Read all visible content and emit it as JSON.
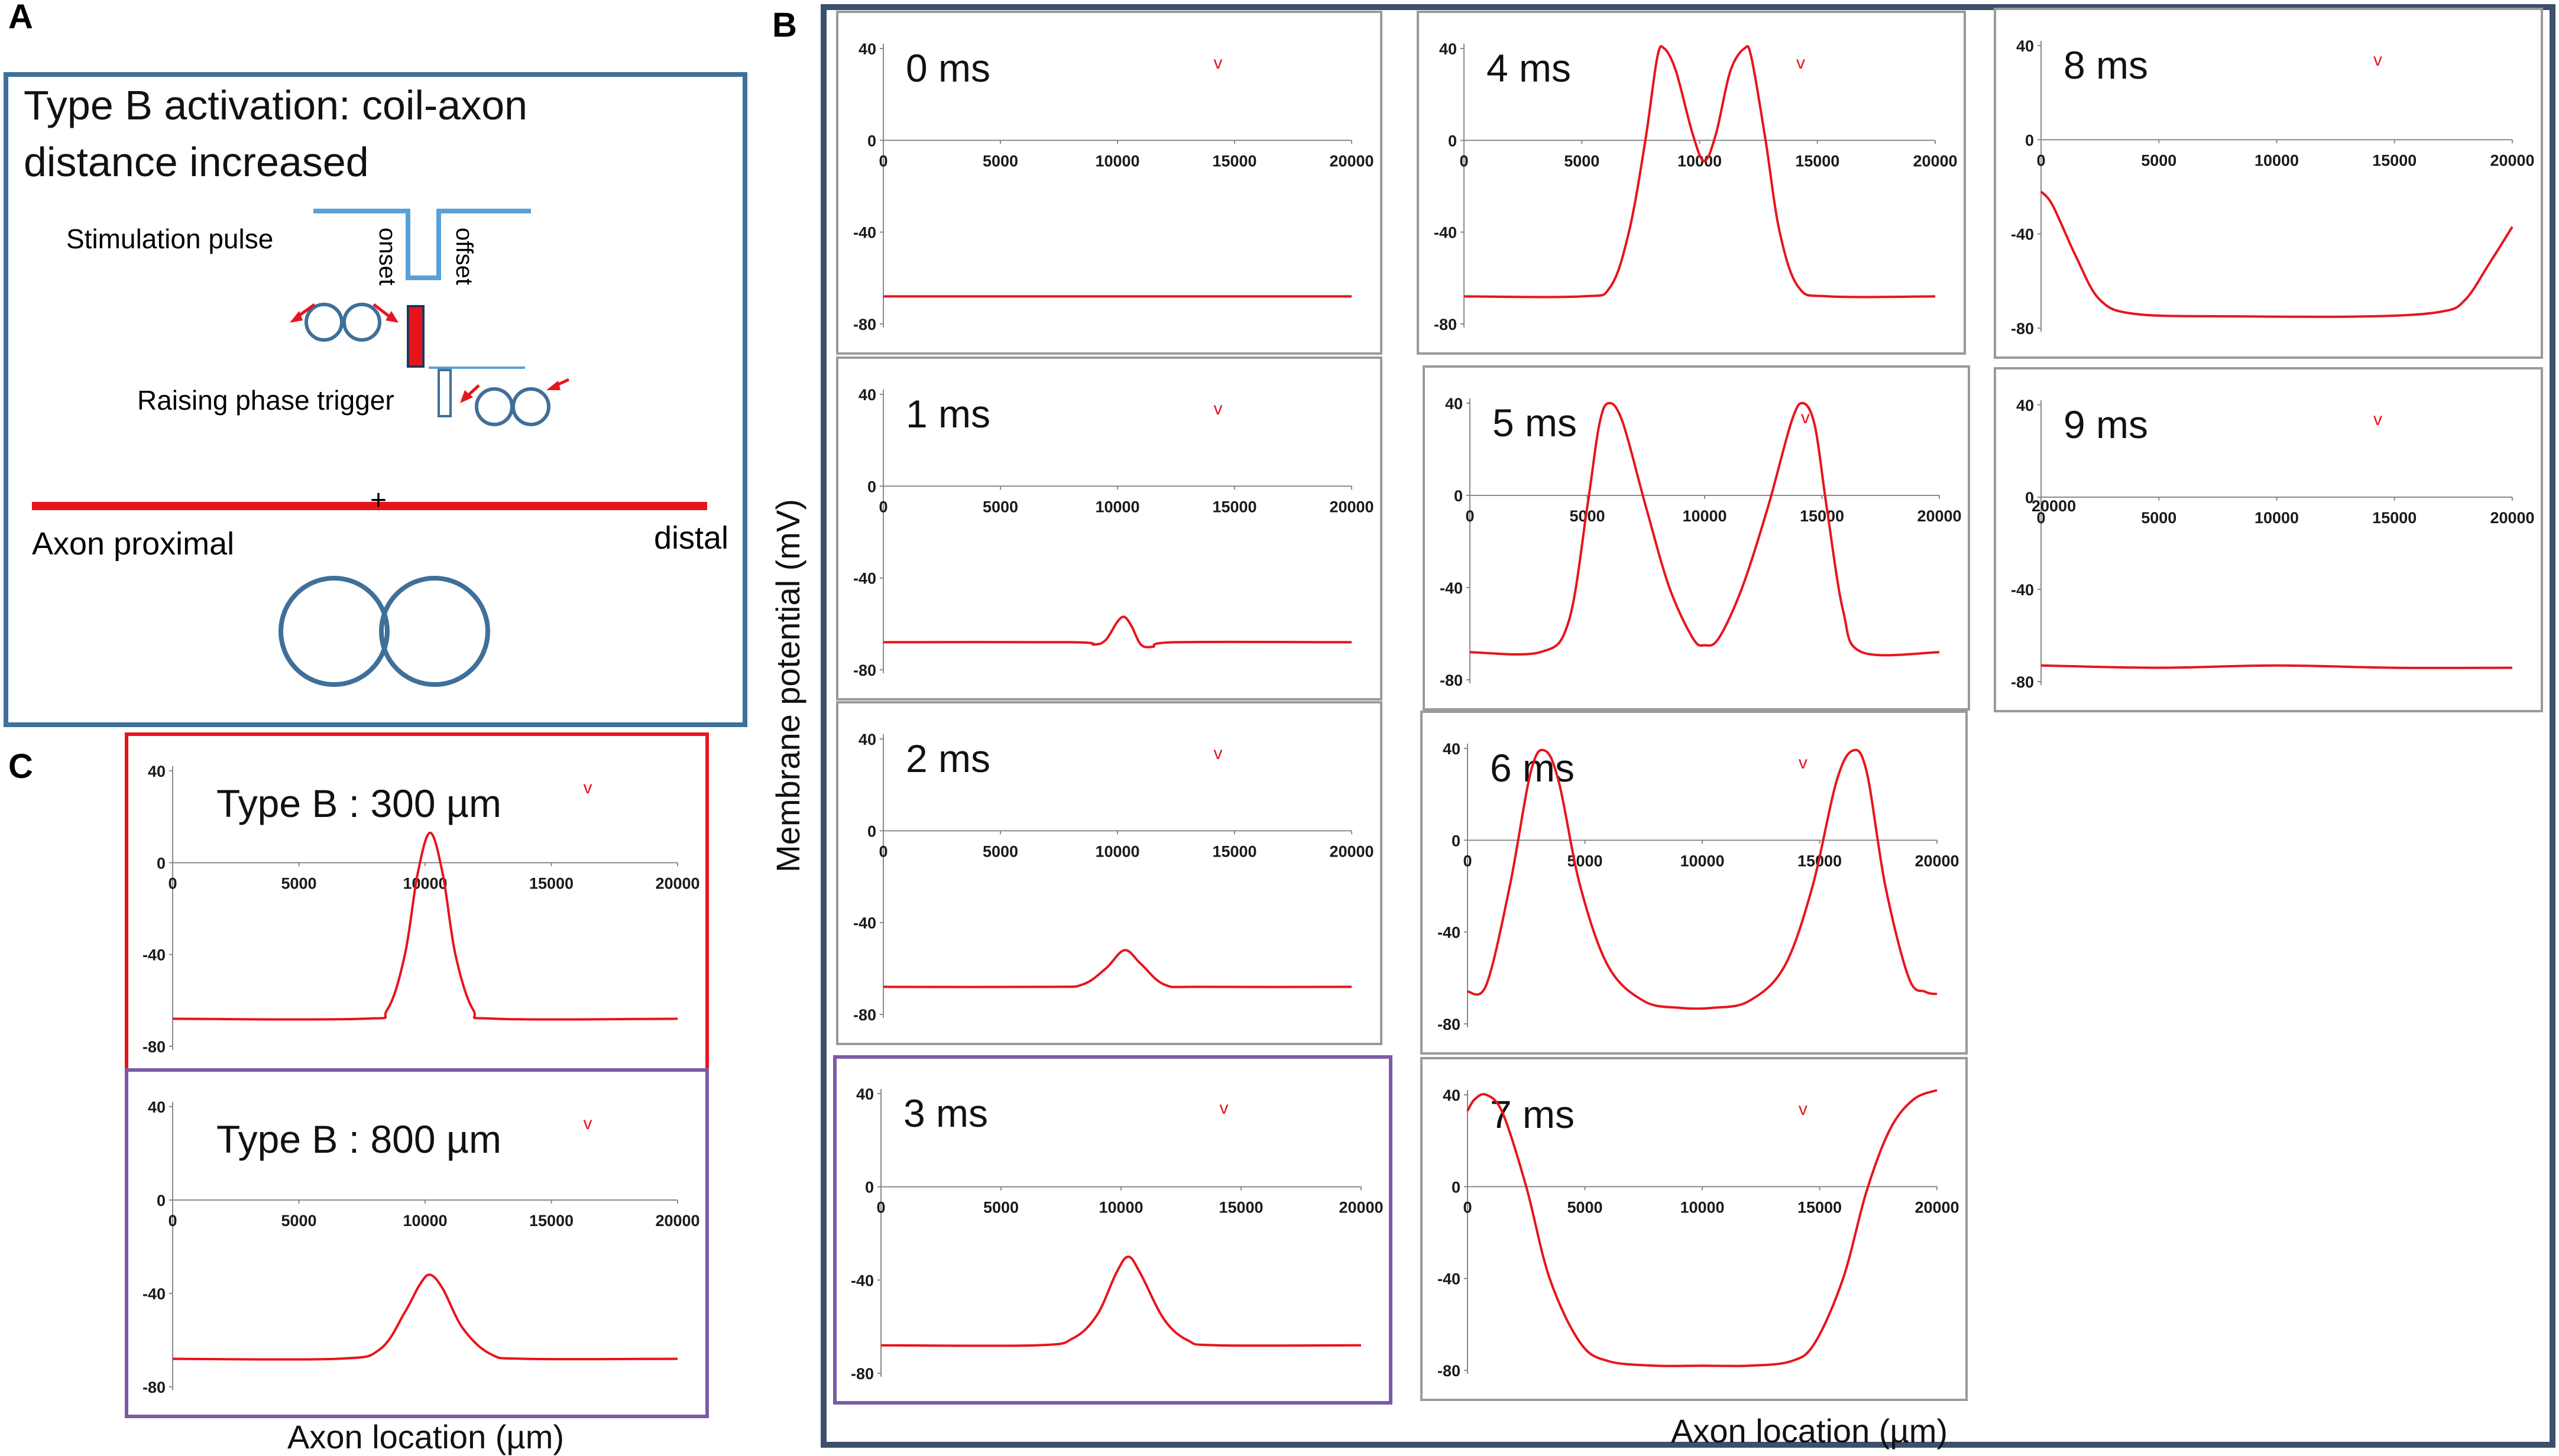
{
  "panels": {
    "a": {
      "letter": "A",
      "title_line1": "Type B activation: coil-axon",
      "title_line2": "distance increased",
      "stim_label": "Stimulation pulse",
      "onset_label": "onset",
      "offset_label": "offset",
      "trigger_label": "Raising phase trigger",
      "center_mark": "+",
      "axon_proximal": "Axon proximal",
      "axon_distal": "distal"
    },
    "b": {
      "letter": "B",
      "ylabel": "Membrane potential (mV)",
      "xlabel": "Axon location (µm)"
    },
    "c": {
      "letter": "C",
      "xlabel": "Axon location (µm)"
    }
  },
  "colors": {
    "trace": "#e8141c",
    "panel_a_border": "#3f6f9a",
    "panel_b_border": "#3c4f6b",
    "panel_c_top_border": "#e8141c",
    "panel_c_bottom_border": "#7c5aa6",
    "coil": "#3f6f9a",
    "pulse": "#5aa0d8",
    "axon": "#e8141c"
  },
  "chart_data": [
    {
      "type": "line",
      "panel": "B",
      "title": "0 ms",
      "marker": "v",
      "x": [
        0,
        5000,
        10000,
        15000,
        20000
      ],
      "xlim": [
        0,
        20000
      ],
      "ylim": [
        -80,
        40
      ],
      "yticks": [
        40,
        0,
        -40,
        -80
      ],
      "xticks": [
        0,
        5000,
        10000,
        15000,
        20000
      ],
      "points": [
        [
          0,
          -68
        ],
        [
          5000,
          -68
        ],
        [
          10000,
          -68
        ],
        [
          15000,
          -68
        ],
        [
          20000,
          -68
        ]
      ]
    },
    {
      "type": "line",
      "panel": "B",
      "title": "1 ms",
      "marker": "v",
      "xlim": [
        0,
        20000
      ],
      "ylim": [
        -80,
        40
      ],
      "yticks": [
        40,
        0,
        -40,
        -80
      ],
      "xticks": [
        0,
        5000,
        10000,
        15000,
        20000
      ],
      "points": [
        [
          0,
          -68
        ],
        [
          8000,
          -68
        ],
        [
          9000,
          -69
        ],
        [
          9500,
          -67
        ],
        [
          10000,
          -59
        ],
        [
          10300,
          -57
        ],
        [
          10600,
          -61
        ],
        [
          11000,
          -69
        ],
        [
          11500,
          -70
        ],
        [
          12500,
          -68
        ],
        [
          20000,
          -68
        ]
      ]
    },
    {
      "type": "line",
      "panel": "B",
      "title": "2 ms",
      "marker": "v",
      "xlim": [
        0,
        20000
      ],
      "ylim": [
        -80,
        40
      ],
      "yticks": [
        40,
        0,
        -40,
        -80
      ],
      "xticks": [
        0,
        5000,
        10000,
        15000,
        20000
      ],
      "points": [
        [
          0,
          -68
        ],
        [
          7000,
          -68
        ],
        [
          8500,
          -67
        ],
        [
          9500,
          -60
        ],
        [
          10300,
          -52
        ],
        [
          11000,
          -58
        ],
        [
          12000,
          -67
        ],
        [
          13500,
          -68
        ],
        [
          20000,
          -68
        ]
      ]
    },
    {
      "type": "line",
      "panel": "B",
      "title": "3 ms",
      "marker": "v",
      "xlim": [
        0,
        20000
      ],
      "ylim": [
        -80,
        40
      ],
      "yticks": [
        40,
        0,
        -40,
        -80
      ],
      "xticks": [
        0,
        5000,
        10000,
        15000,
        20000
      ],
      "points": [
        [
          0,
          -68
        ],
        [
          6500,
          -68
        ],
        [
          8000,
          -65
        ],
        [
          9000,
          -55
        ],
        [
          9800,
          -37
        ],
        [
          10300,
          -30
        ],
        [
          10800,
          -37
        ],
        [
          11800,
          -57
        ],
        [
          12800,
          -66
        ],
        [
          14000,
          -68
        ],
        [
          20000,
          -68
        ]
      ]
    },
    {
      "type": "line",
      "panel": "B",
      "title": "4 ms",
      "marker": "v",
      "xlim": [
        0,
        20000
      ],
      "ylim": [
        -80,
        40
      ],
      "yticks": [
        40,
        0,
        -40,
        -80
      ],
      "xticks": [
        0,
        5000,
        10000,
        15000,
        20000
      ],
      "points": [
        [
          0,
          -68
        ],
        [
          5000,
          -68
        ],
        [
          6200,
          -64
        ],
        [
          7000,
          -40
        ],
        [
          7700,
          0
        ],
        [
          8200,
          36
        ],
        [
          8500,
          40
        ],
        [
          9000,
          30
        ],
        [
          9700,
          3
        ],
        [
          10200,
          -9
        ],
        [
          10700,
          3
        ],
        [
          11300,
          30
        ],
        [
          11900,
          40
        ],
        [
          12200,
          36
        ],
        [
          12800,
          0
        ],
        [
          13400,
          -40
        ],
        [
          14200,
          -64
        ],
        [
          15500,
          -68
        ],
        [
          20000,
          -68
        ]
      ]
    },
    {
      "type": "line",
      "panel": "B",
      "title": "5 ms",
      "marker": "v",
      "xlim": [
        0,
        20000
      ],
      "ylim": [
        -80,
        40
      ],
      "yticks": [
        40,
        0,
        -40,
        -80
      ],
      "xticks": [
        0,
        5000,
        10000,
        15000,
        20000
      ],
      "points": [
        [
          0,
          -68
        ],
        [
          3000,
          -68
        ],
        [
          4200,
          -55
        ],
        [
          5000,
          -5
        ],
        [
          5500,
          30
        ],
        [
          5900,
          40
        ],
        [
          6500,
          32
        ],
        [
          7500,
          -5
        ],
        [
          8500,
          -40
        ],
        [
          9500,
          -62
        ],
        [
          10000,
          -65
        ],
        [
          10600,
          -62
        ],
        [
          11600,
          -40
        ],
        [
          12700,
          -5
        ],
        [
          13700,
          32
        ],
        [
          14200,
          40
        ],
        [
          14700,
          30
        ],
        [
          15200,
          -5
        ],
        [
          15900,
          -50
        ],
        [
          16700,
          -68
        ],
        [
          20000,
          -68
        ]
      ]
    },
    {
      "type": "line",
      "panel": "B",
      "title": "6 ms",
      "marker": "v",
      "xlim": [
        0,
        20000
      ],
      "ylim": [
        -80,
        40
      ],
      "yticks": [
        40,
        0,
        -40,
        -80
      ],
      "xticks": [
        0,
        5000,
        10000,
        15000,
        20000
      ],
      "points": [
        [
          0,
          -66
        ],
        [
          800,
          -63
        ],
        [
          1800,
          -20
        ],
        [
          2700,
          30
        ],
        [
          3300,
          39
        ],
        [
          3900,
          25
        ],
        [
          4800,
          -20
        ],
        [
          6000,
          -55
        ],
        [
          7500,
          -70
        ],
        [
          9000,
          -73
        ],
        [
          10500,
          -73
        ],
        [
          12000,
          -70
        ],
        [
          13500,
          -55
        ],
        [
          14700,
          -20
        ],
        [
          15700,
          25
        ],
        [
          16400,
          39
        ],
        [
          17000,
          30
        ],
        [
          17800,
          -20
        ],
        [
          18800,
          -60
        ],
        [
          19500,
          -66
        ],
        [
          20000,
          -67
        ]
      ]
    },
    {
      "type": "line",
      "panel": "B",
      "title": "7 ms",
      "marker": "v",
      "xlim": [
        0,
        20000
      ],
      "ylim": [
        -80,
        40
      ],
      "yticks": [
        40,
        0,
        -40,
        -80
      ],
      "xticks": [
        0,
        5000,
        10000,
        15000,
        20000
      ],
      "points": [
        [
          0,
          33
        ],
        [
          300,
          38
        ],
        [
          800,
          40
        ],
        [
          1500,
          32
        ],
        [
          2500,
          0
        ],
        [
          3500,
          -40
        ],
        [
          4800,
          -68
        ],
        [
          6000,
          -76
        ],
        [
          8000,
          -78
        ],
        [
          10000,
          -78
        ],
        [
          12000,
          -78
        ],
        [
          13800,
          -76
        ],
        [
          14800,
          -68
        ],
        [
          16000,
          -40
        ],
        [
          17000,
          -2
        ],
        [
          18000,
          25
        ],
        [
          19000,
          38
        ],
        [
          20000,
          42
        ]
      ]
    },
    {
      "type": "line",
      "panel": "B",
      "title": "8 ms",
      "marker": "v",
      "xlim": [
        0,
        20000
      ],
      "ylim": [
        -80,
        40
      ],
      "yticks": [
        40,
        0,
        -40,
        -80
      ],
      "xticks": [
        0,
        5000,
        10000,
        15000,
        20000
      ],
      "points": [
        [
          0,
          -22
        ],
        [
          500,
          -28
        ],
        [
          1500,
          -50
        ],
        [
          2500,
          -68
        ],
        [
          4000,
          -74
        ],
        [
          8000,
          -75
        ],
        [
          14000,
          -75
        ],
        [
          17000,
          -73
        ],
        [
          18000,
          -68
        ],
        [
          19000,
          -53
        ],
        [
          20000,
          -37
        ]
      ]
    },
    {
      "type": "line",
      "panel": "B",
      "title": "9 ms",
      "marker": "v",
      "extra_tick_label": "20000",
      "xlim": [
        0,
        20000
      ],
      "ylim": [
        -80,
        40
      ],
      "yticks": [
        40,
        0,
        -40,
        -80
      ],
      "xticks": [
        0,
        5000,
        10000,
        15000,
        20000
      ],
      "points": [
        [
          0,
          -73
        ],
        [
          5000,
          -74
        ],
        [
          10000,
          -73
        ],
        [
          15000,
          -74
        ],
        [
          20000,
          -74
        ]
      ]
    },
    {
      "type": "line",
      "panel": "C",
      "title": "Type B : 300 µm",
      "marker": "v",
      "xlim": [
        0,
        20000
      ],
      "ylim": [
        -80,
        40
      ],
      "yticks": [
        40,
        0,
        -40,
        -80
      ],
      "xticks": [
        0,
        5000,
        10000,
        15000,
        20000
      ],
      "points": [
        [
          0,
          -68
        ],
        [
          7500,
          -68
        ],
        [
          8500,
          -64
        ],
        [
          9200,
          -40
        ],
        [
          9700,
          -5
        ],
        [
          10200,
          13
        ],
        [
          10700,
          -5
        ],
        [
          11200,
          -40
        ],
        [
          11900,
          -64
        ],
        [
          12800,
          -68
        ],
        [
          20000,
          -68
        ]
      ]
    },
    {
      "type": "line",
      "panel": "C",
      "title": "Type B : 800 µm",
      "marker": "v",
      "xlim": [
        0,
        20000
      ],
      "ylim": [
        -80,
        40
      ],
      "yticks": [
        40,
        0,
        -40,
        -80
      ],
      "xticks": [
        0,
        5000,
        10000,
        15000,
        20000
      ],
      "points": [
        [
          0,
          -68
        ],
        [
          6500,
          -68
        ],
        [
          8200,
          -64
        ],
        [
          9200,
          -48
        ],
        [
          9800,
          -36
        ],
        [
          10200,
          -32
        ],
        [
          10700,
          -38
        ],
        [
          11500,
          -55
        ],
        [
          12600,
          -66
        ],
        [
          14000,
          -68
        ],
        [
          20000,
          -68
        ]
      ]
    }
  ]
}
